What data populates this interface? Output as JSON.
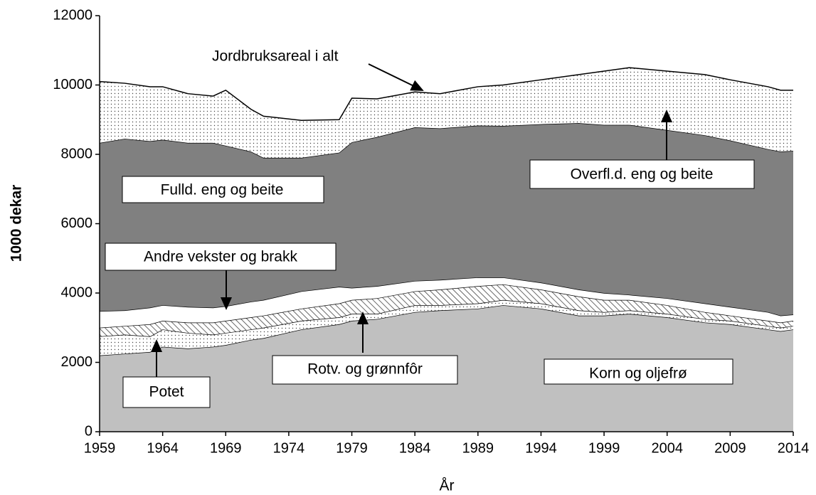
{
  "chart_data": {
    "type": "stacked_area",
    "x_label": "År",
    "y_label": "1000 dekar",
    "xlim": [
      1959,
      2014
    ],
    "xticks": [
      1959,
      1964,
      1969,
      1974,
      1979,
      1984,
      1989,
      1994,
      1999,
      2004,
      2009,
      2014
    ],
    "ylim": [
      0,
      12000
    ],
    "yticks": [
      0,
      2000,
      4000,
      6000,
      8000,
      10000,
      12000
    ],
    "x": [
      1959,
      1961,
      1963,
      1964,
      1966,
      1968,
      1969,
      1971,
      1972,
      1975,
      1978,
      1979,
      1981,
      1984,
      1986,
      1989,
      1991,
      1994,
      1997,
      1999,
      2001,
      2004,
      2007,
      2009,
      2012,
      2013,
      2014
    ],
    "series": [
      {
        "name": "Korn og oljefrø",
        "color": "#c0c0c0",
        "pattern": "none",
        "values": [
          2200,
          2250,
          2300,
          2450,
          2400,
          2450,
          2500,
          2650,
          2700,
          2950,
          3100,
          3200,
          3250,
          3450,
          3500,
          3550,
          3650,
          3550,
          3350,
          3350,
          3400,
          3300,
          3150,
          3100,
          2950,
          2900,
          2950
        ]
      },
      {
        "name": "Potet",
        "color": "#ffffff",
        "pattern": "dots",
        "values": [
          550,
          550,
          450,
          500,
          450,
          350,
          350,
          300,
          300,
          250,
          200,
          200,
          150,
          200,
          150,
          150,
          150,
          150,
          150,
          100,
          100,
          100,
          100,
          100,
          100,
          100,
          100
        ]
      },
      {
        "name": "Rotv. og grønnfôr",
        "color": "#ffffff",
        "pattern": "hatch",
        "values": [
          250,
          250,
          350,
          250,
          300,
          350,
          350,
          350,
          350,
          350,
          400,
          400,
          450,
          400,
          450,
          500,
          450,
          400,
          400,
          350,
          300,
          250,
          200,
          150,
          150,
          150,
          150
        ]
      },
      {
        "name": "Andre vekster og brakk",
        "color": "#ffffff",
        "pattern": "none",
        "values": [
          480,
          450,
          480,
          450,
          450,
          430,
          420,
          450,
          450,
          500,
          480,
          350,
          350,
          300,
          280,
          250,
          200,
          200,
          200,
          200,
          150,
          200,
          250,
          250,
          250,
          200,
          180
        ]
      },
      {
        "name": "Fulld. eng og beite",
        "color": "#808080",
        "pattern": "none",
        "values": [
          4850,
          4950,
          4800,
          4770,
          4730,
          4750,
          4630,
          4330,
          4100,
          3850,
          3870,
          4200,
          4300,
          4430,
          4370,
          4380,
          4370,
          4570,
          4800,
          4850,
          4900,
          4850,
          4850,
          4800,
          4700,
          4730,
          4720
        ]
      },
      {
        "name": "Overfl.d. eng og beite",
        "color": "#ffffff",
        "pattern": "dots",
        "values": [
          1770,
          1600,
          1570,
          1530,
          1420,
          1350,
          1600,
          1220,
          1200,
          1080,
          950,
          1270,
          1100,
          1020,
          1000,
          1120,
          1180,
          1280,
          1400,
          1550,
          1650,
          1700,
          1750,
          1750,
          1800,
          1770,
          1750
        ]
      }
    ],
    "total_label": "Jordbruksareal i alt"
  }
}
